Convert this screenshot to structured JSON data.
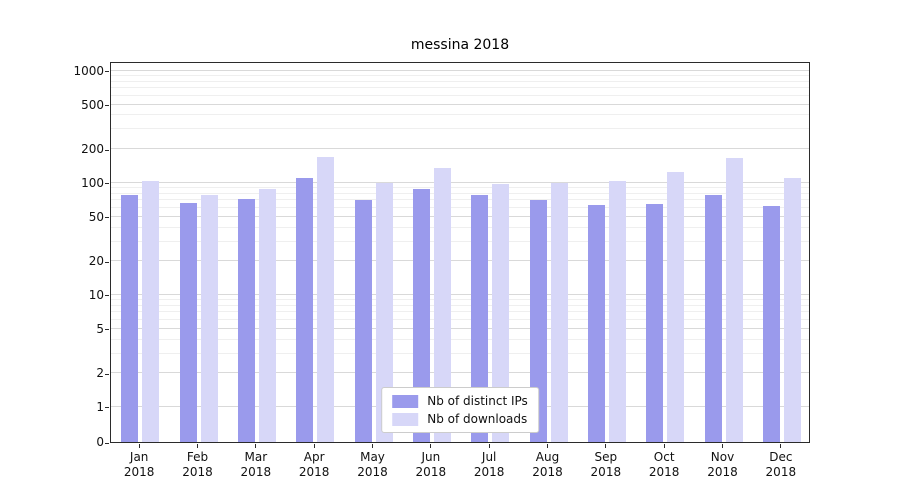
{
  "title": "messina 2018",
  "chart_data": {
    "type": "bar",
    "title": "messina 2018",
    "yscale": "symlog",
    "ylim": [
      0,
      1000
    ],
    "grid": true,
    "legend_position": "lower center",
    "y_ticks": [
      0,
      1,
      2,
      5,
      10,
      20,
      50,
      100,
      200,
      500,
      1000
    ],
    "y_minor_ticks": [
      3,
      4,
      6,
      7,
      8,
      9,
      30,
      40,
      60,
      70,
      80,
      90,
      300,
      400,
      600,
      700,
      800,
      900
    ],
    "categories": [
      "Jan 2018",
      "Feb 2018",
      "Mar 2018",
      "Apr 2018",
      "May 2018",
      "Jun 2018",
      "Jul 2018",
      "Aug 2018",
      "Sep 2018",
      "Oct 2018",
      "Nov 2018",
      "Dec 2018"
    ],
    "x_tick_labels": [
      [
        "Jan",
        "2018"
      ],
      [
        "Feb",
        "2018"
      ],
      [
        "Mar",
        "2018"
      ],
      [
        "Apr",
        "2018"
      ],
      [
        "May",
        "2018"
      ],
      [
        "Jun",
        "2018"
      ],
      [
        "Jul",
        "2018"
      ],
      [
        "Aug",
        "2018"
      ],
      [
        "Sep",
        "2018"
      ],
      [
        "Oct",
        "2018"
      ],
      [
        "Nov",
        "2018"
      ],
      [
        "Dec",
        "2018"
      ]
    ],
    "series": [
      {
        "name": "Nb of distinct IPs",
        "color": "#9a9aec",
        "values": [
          78,
          66,
          72,
          110,
          70,
          88,
          78,
          71,
          64,
          65,
          78,
          62
        ]
      },
      {
        "name": "Nb of downloads",
        "color": "#d7d7f8",
        "values": [
          105,
          78,
          88,
          172,
          100,
          135,
          98,
          100,
          103,
          125,
          168,
          110
        ]
      }
    ]
  }
}
